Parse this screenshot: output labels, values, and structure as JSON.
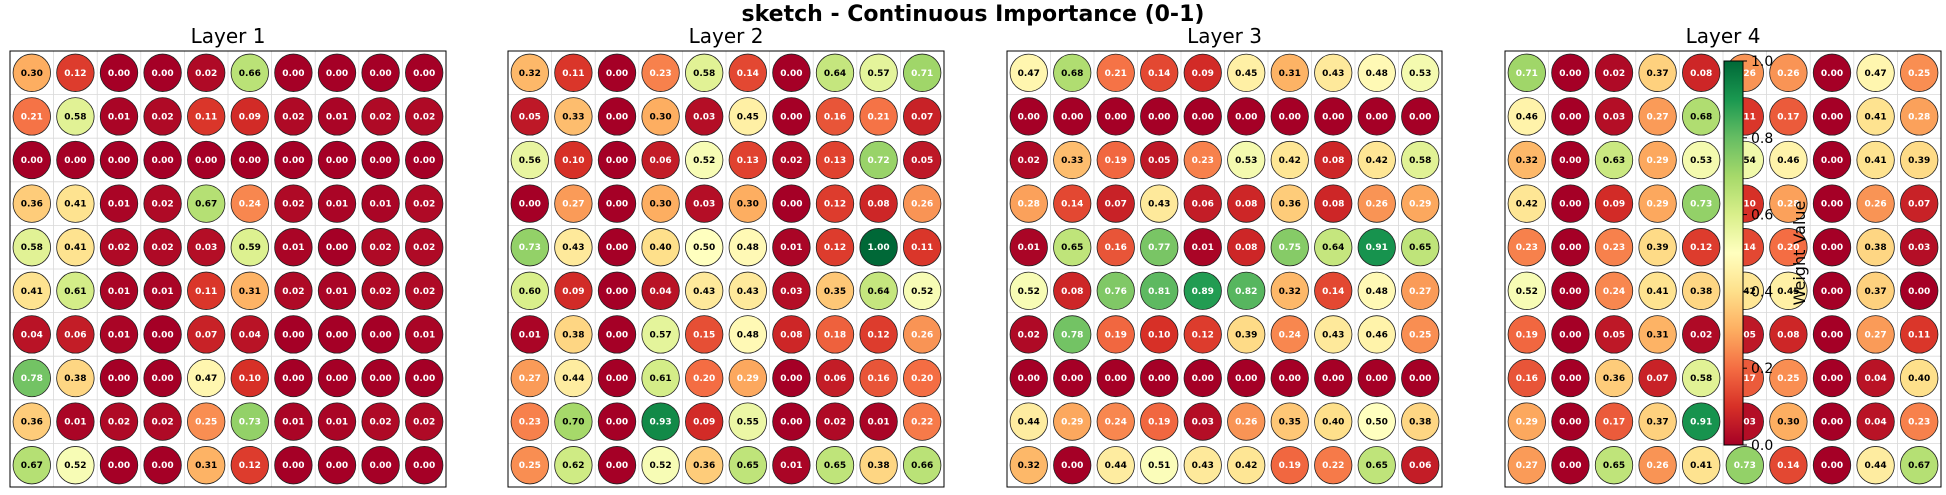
{
  "figure_title": "sketch - Continuous Importance (0-1)",
  "colorbar": {
    "label": "Weight Value",
    "ticks": [
      "0.0",
      "0.2",
      "0.4",
      "0.6",
      "0.8",
      "1.0"
    ],
    "range": [
      0,
      1
    ],
    "colormap": "RdYlGn"
  },
  "chart_data": [
    {
      "type": "heatmap",
      "title": "Layer 1",
      "rows": 10,
      "cols": 10,
      "values": [
        [
          0.3,
          0.12,
          0.0,
          0.0,
          0.02,
          0.66,
          0.0,
          0.0,
          0.0,
          0.0
        ],
        [
          0.21,
          0.58,
          0.01,
          0.02,
          0.11,
          0.09,
          0.02,
          0.01,
          0.02,
          0.02
        ],
        [
          0.0,
          0.0,
          0.0,
          0.0,
          0.0,
          0.0,
          0.0,
          0.0,
          0.0,
          0.0
        ],
        [
          0.36,
          0.41,
          0.01,
          0.02,
          0.67,
          0.24,
          0.02,
          0.01,
          0.01,
          0.02
        ],
        [
          0.58,
          0.41,
          0.02,
          0.02,
          0.03,
          0.59,
          0.01,
          0.0,
          0.02,
          0.02
        ],
        [
          0.41,
          0.61,
          0.01,
          0.01,
          0.11,
          0.31,
          0.02,
          0.01,
          0.02,
          0.02
        ],
        [
          0.04,
          0.06,
          0.01,
          0.0,
          0.07,
          0.04,
          0.0,
          0.0,
          0.0,
          0.01
        ],
        [
          0.78,
          0.38,
          0.0,
          0.0,
          0.47,
          0.1,
          0.0,
          0.0,
          0.0,
          0.0
        ],
        [
          0.36,
          0.01,
          0.02,
          0.02,
          0.25,
          0.73,
          0.01,
          0.01,
          0.02,
          0.02
        ],
        [
          0.67,
          0.52,
          0.0,
          0.0,
          0.31,
          0.12,
          0.0,
          0.0,
          0.0,
          0.0
        ]
      ]
    },
    {
      "type": "heatmap",
      "title": "Layer 2",
      "rows": 10,
      "cols": 10,
      "values": [
        [
          0.32,
          0.11,
          0.0,
          0.23,
          0.58,
          0.14,
          0.0,
          0.64,
          0.57,
          0.71
        ],
        [
          0.05,
          0.33,
          0.0,
          0.3,
          0.03,
          0.45,
          0.0,
          0.16,
          0.21,
          0.07
        ],
        [
          0.56,
          0.1,
          0.0,
          0.06,
          0.52,
          0.13,
          0.02,
          0.13,
          0.72,
          0.05
        ],
        [
          0.0,
          0.27,
          0.0,
          0.3,
          0.03,
          0.3,
          0.0,
          0.12,
          0.08,
          0.26
        ],
        [
          0.73,
          0.43,
          0.0,
          0.4,
          0.5,
          0.48,
          0.01,
          0.12,
          1.0,
          0.11
        ],
        [
          0.6,
          0.09,
          0.0,
          0.04,
          0.43,
          0.43,
          0.03,
          0.35,
          0.64,
          0.52
        ],
        [
          0.01,
          0.38,
          0.0,
          0.57,
          0.15,
          0.48,
          0.08,
          0.18,
          0.12,
          0.26
        ],
        [
          0.27,
          0.44,
          0.0,
          0.61,
          0.2,
          0.29,
          0.0,
          0.06,
          0.16,
          0.2
        ],
        [
          0.23,
          0.7,
          0.0,
          0.93,
          0.09,
          0.55,
          0.0,
          0.02,
          0.01,
          0.22
        ],
        [
          0.25,
          0.62,
          0.0,
          0.52,
          0.36,
          0.65,
          0.01,
          0.65,
          0.38,
          0.66
        ]
      ]
    },
    {
      "type": "heatmap",
      "title": "Layer 3",
      "rows": 10,
      "cols": 10,
      "values": [
        [
          0.47,
          0.68,
          0.21,
          0.14,
          0.09,
          0.45,
          0.31,
          0.43,
          0.48,
          0.53
        ],
        [
          0.0,
          0.0,
          0.0,
          0.0,
          0.0,
          0.0,
          0.0,
          0.0,
          0.0,
          0.0
        ],
        [
          0.02,
          0.33,
          0.19,
          0.05,
          0.23,
          0.53,
          0.42,
          0.08,
          0.42,
          0.58
        ],
        [
          0.28,
          0.14,
          0.07,
          0.43,
          0.06,
          0.08,
          0.36,
          0.08,
          0.26,
          0.29
        ],
        [
          0.01,
          0.65,
          0.16,
          0.77,
          0.01,
          0.08,
          0.75,
          0.64,
          0.91,
          0.65
        ],
        [
          0.52,
          0.08,
          0.76,
          0.81,
          0.89,
          0.82,
          0.32,
          0.14,
          0.48,
          0.27
        ],
        [
          0.02,
          0.78,
          0.19,
          0.1,
          0.12,
          0.39,
          0.24,
          0.43,
          0.46,
          0.25
        ],
        [
          0.0,
          0.0,
          0.0,
          0.0,
          0.0,
          0.0,
          0.0,
          0.0,
          0.0,
          0.0
        ],
        [
          0.44,
          0.29,
          0.24,
          0.19,
          0.03,
          0.26,
          0.35,
          0.4,
          0.5,
          0.38
        ],
        [
          0.32,
          0.0,
          0.44,
          0.51,
          0.43,
          0.42,
          0.19,
          0.22,
          0.65,
          0.06
        ]
      ]
    },
    {
      "type": "heatmap",
      "title": "Layer 4",
      "rows": 10,
      "cols": 10,
      "values": [
        [
          0.71,
          0.0,
          0.02,
          0.37,
          0.08,
          0.26,
          0.26,
          0.0,
          0.47,
          0.25
        ],
        [
          0.46,
          0.0,
          0.03,
          0.27,
          0.68,
          0.11,
          0.17,
          0.0,
          0.41,
          0.28
        ],
        [
          0.32,
          0.0,
          0.63,
          0.29,
          0.53,
          0.54,
          0.46,
          0.0,
          0.41,
          0.39
        ],
        [
          0.42,
          0.0,
          0.09,
          0.29,
          0.73,
          0.1,
          0.28,
          0.0,
          0.26,
          0.07
        ],
        [
          0.23,
          0.0,
          0.23,
          0.39,
          0.12,
          0.14,
          0.2,
          0.0,
          0.38,
          0.03
        ],
        [
          0.52,
          0.0,
          0.24,
          0.41,
          0.38,
          0.42,
          0.45,
          0.0,
          0.37,
          0.0
        ],
        [
          0.19,
          0.0,
          0.05,
          0.31,
          0.02,
          0.05,
          0.08,
          0.0,
          0.27,
          0.11
        ],
        [
          0.16,
          0.0,
          0.36,
          0.07,
          0.58,
          0.17,
          0.25,
          0.0,
          0.04,
          0.4
        ],
        [
          0.29,
          0.0,
          0.17,
          0.37,
          0.91,
          0.03,
          0.3,
          0.0,
          0.04,
          0.23
        ],
        [
          0.27,
          0.0,
          0.65,
          0.26,
          0.41,
          0.73,
          0.14,
          0.0,
          0.44,
          0.67
        ]
      ]
    }
  ]
}
